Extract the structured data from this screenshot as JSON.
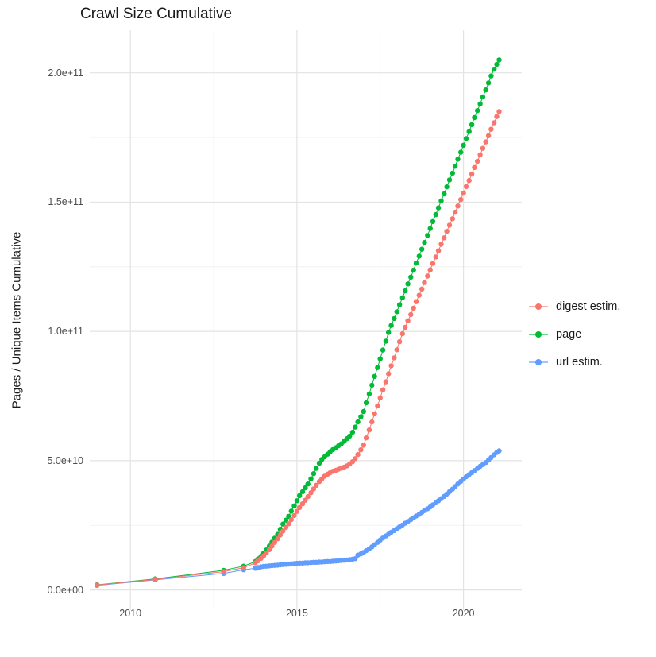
{
  "title": "Crawl Size Cumulative",
  "y_axis": {
    "title": "Pages / Unique Items Cumulative",
    "ticks": [
      {
        "value_e9": 0,
        "label": "0.0e+00"
      },
      {
        "value_e9": 50,
        "label": "5.0e+10"
      },
      {
        "value_e9": 100,
        "label": "1.0e+11"
      },
      {
        "value_e9": 150,
        "label": "1.5e+11"
      },
      {
        "value_e9": 200,
        "label": "2.0e+11"
      }
    ],
    "minor_e9": [
      25,
      75,
      125,
      175
    ]
  },
  "x_axis": {
    "ticks": [
      {
        "value": 2010,
        "label": "2010"
      },
      {
        "value": 2015,
        "label": "2015"
      },
      {
        "value": 2020,
        "label": "2020"
      }
    ],
    "minor": [
      2012.5,
      2017.5
    ]
  },
  "legend": {
    "items": [
      {
        "label": "digest estim.",
        "color": "#F8766D"
      },
      {
        "label": "page",
        "color": "#00BA38"
      },
      {
        "label": "url estim.",
        "color": "#619CFF"
      }
    ]
  },
  "chart_data": {
    "type": "line",
    "markers": true,
    "title": "Crawl Size Cumulative",
    "xlabel": "",
    "ylabel": "Pages / Unique Items Cumulative",
    "value_unit": 1000000000.0,
    "x_domain": [
      2008.78,
      2021.75
    ],
    "y_domain_e9": [
      -7.8,
      216.5
    ],
    "grid": true,
    "legend_position": "right",
    "series": [
      {
        "name": "page",
        "color": "#00BA38",
        "points": [
          [
            2009.0,
            2.0
          ],
          [
            2010.75,
            4.3
          ],
          [
            2012.8,
            7.6
          ],
          [
            2013.4,
            9.2
          ],
          [
            2013.75,
            11.0
          ],
          [
            2013.83,
            12.0
          ],
          [
            2013.92,
            13.0
          ],
          [
            2014.0,
            14.2
          ],
          [
            2014.08,
            15.5
          ],
          [
            2014.17,
            17.0
          ],
          [
            2014.25,
            18.5
          ],
          [
            2014.33,
            20.0
          ],
          [
            2014.42,
            21.5
          ],
          [
            2014.5,
            23.5
          ],
          [
            2014.58,
            25.5
          ],
          [
            2014.67,
            27.0
          ],
          [
            2014.75,
            28.5
          ],
          [
            2014.83,
            30.5
          ],
          [
            2014.92,
            32.5
          ],
          [
            2015.0,
            34.5
          ],
          [
            2015.08,
            36.5
          ],
          [
            2015.17,
            38.0
          ],
          [
            2015.25,
            39.5
          ],
          [
            2015.33,
            41.0
          ],
          [
            2015.42,
            43.0
          ],
          [
            2015.5,
            45.0
          ],
          [
            2015.58,
            47.0
          ],
          [
            2015.67,
            49.0
          ],
          [
            2015.75,
            50.5
          ],
          [
            2015.83,
            51.5
          ],
          [
            2015.92,
            52.5
          ],
          [
            2016.0,
            53.5
          ],
          [
            2016.08,
            54.3
          ],
          [
            2016.17,
            55.0
          ],
          [
            2016.25,
            55.8
          ],
          [
            2016.33,
            56.5
          ],
          [
            2016.42,
            57.5
          ],
          [
            2016.5,
            58.5
          ],
          [
            2016.58,
            59.5
          ],
          [
            2016.67,
            61.0
          ],
          [
            2016.75,
            63.0
          ],
          [
            2016.83,
            65.0
          ],
          [
            2016.92,
            67.0
          ],
          [
            2017.0,
            69.0
          ],
          [
            2017.08,
            72.4
          ],
          [
            2017.17,
            75.8
          ],
          [
            2017.25,
            79.2
          ],
          [
            2017.33,
            82.6
          ],
          [
            2017.42,
            86.0
          ],
          [
            2017.5,
            89.4
          ],
          [
            2017.58,
            92.8
          ],
          [
            2017.67,
            96.2
          ],
          [
            2017.75,
            99.6
          ],
          [
            2017.83,
            102.3
          ],
          [
            2017.92,
            105.0
          ],
          [
            2018.0,
            107.6
          ],
          [
            2018.08,
            110.3
          ],
          [
            2018.17,
            113.0
          ],
          [
            2018.25,
            115.7
          ],
          [
            2018.33,
            118.4
          ],
          [
            2018.42,
            121.0
          ],
          [
            2018.5,
            123.7
          ],
          [
            2018.58,
            126.4
          ],
          [
            2018.67,
            129.1
          ],
          [
            2018.75,
            131.8
          ],
          [
            2018.83,
            134.4
          ],
          [
            2018.92,
            137.1
          ],
          [
            2019.0,
            139.8
          ],
          [
            2019.08,
            142.5
          ],
          [
            2019.17,
            145.2
          ],
          [
            2019.25,
            147.8
          ],
          [
            2019.33,
            150.5
          ],
          [
            2019.42,
            153.2
          ],
          [
            2019.5,
            155.9
          ],
          [
            2019.58,
            158.6
          ],
          [
            2019.67,
            161.2
          ],
          [
            2019.75,
            163.9
          ],
          [
            2019.83,
            166.6
          ],
          [
            2019.92,
            169.3
          ],
          [
            2020.0,
            172.0
          ],
          [
            2020.08,
            174.6
          ],
          [
            2020.17,
            177.3
          ],
          [
            2020.25,
            180.0
          ],
          [
            2020.33,
            182.7
          ],
          [
            2020.42,
            185.4
          ],
          [
            2020.5,
            188.0
          ],
          [
            2020.58,
            190.7
          ],
          [
            2020.67,
            193.4
          ],
          [
            2020.75,
            196.1
          ],
          [
            2020.83,
            198.8
          ],
          [
            2020.92,
            201.4
          ],
          [
            2021.0,
            203.3
          ],
          [
            2021.07,
            205.0
          ]
        ]
      },
      {
        "name": "url estim.",
        "color": "#619CFF",
        "points": [
          [
            2009.0,
            1.8
          ],
          [
            2010.75,
            3.9
          ],
          [
            2012.8,
            6.4
          ],
          [
            2013.4,
            7.8
          ],
          [
            2013.75,
            8.4
          ],
          [
            2013.83,
            8.7
          ],
          [
            2013.92,
            8.9
          ],
          [
            2014.0,
            9.1
          ],
          [
            2014.08,
            9.2
          ],
          [
            2014.17,
            9.3
          ],
          [
            2014.25,
            9.4
          ],
          [
            2014.33,
            9.5
          ],
          [
            2014.42,
            9.6
          ],
          [
            2014.5,
            9.7
          ],
          [
            2014.58,
            9.8
          ],
          [
            2014.67,
            9.9
          ],
          [
            2014.75,
            10.0
          ],
          [
            2014.83,
            10.1
          ],
          [
            2014.92,
            10.2
          ],
          [
            2015.0,
            10.3
          ],
          [
            2015.08,
            10.4
          ],
          [
            2015.17,
            10.4
          ],
          [
            2015.25,
            10.5
          ],
          [
            2015.33,
            10.5
          ],
          [
            2015.42,
            10.6
          ],
          [
            2015.5,
            10.7
          ],
          [
            2015.58,
            10.7
          ],
          [
            2015.67,
            10.8
          ],
          [
            2015.75,
            10.8
          ],
          [
            2015.83,
            10.9
          ],
          [
            2015.92,
            11.0
          ],
          [
            2016.0,
            11.0
          ],
          [
            2016.08,
            11.1
          ],
          [
            2016.17,
            11.2
          ],
          [
            2016.25,
            11.3
          ],
          [
            2016.33,
            11.4
          ],
          [
            2016.42,
            11.5
          ],
          [
            2016.5,
            11.6
          ],
          [
            2016.58,
            11.7
          ],
          [
            2016.67,
            11.9
          ],
          [
            2016.75,
            12.1
          ],
          [
            2016.83,
            13.5
          ],
          [
            2016.92,
            14.0
          ],
          [
            2017.0,
            14.5
          ],
          [
            2017.08,
            15.2
          ],
          [
            2017.17,
            15.9
          ],
          [
            2017.25,
            16.7
          ],
          [
            2017.33,
            17.5
          ],
          [
            2017.42,
            18.4
          ],
          [
            2017.5,
            19.3
          ],
          [
            2017.58,
            20.1
          ],
          [
            2017.67,
            20.9
          ],
          [
            2017.75,
            21.6
          ],
          [
            2017.83,
            22.3
          ],
          [
            2017.92,
            23.0
          ],
          [
            2018.0,
            23.7
          ],
          [
            2018.08,
            24.4
          ],
          [
            2018.17,
            25.1
          ],
          [
            2018.25,
            25.8
          ],
          [
            2018.33,
            26.5
          ],
          [
            2018.42,
            27.2
          ],
          [
            2018.5,
            27.9
          ],
          [
            2018.58,
            28.6
          ],
          [
            2018.67,
            29.3
          ],
          [
            2018.75,
            30.0
          ],
          [
            2018.83,
            30.7
          ],
          [
            2018.92,
            31.4
          ],
          [
            2019.0,
            32.1
          ],
          [
            2019.08,
            32.9
          ],
          [
            2019.17,
            33.7
          ],
          [
            2019.25,
            34.5
          ],
          [
            2019.33,
            35.3
          ],
          [
            2019.42,
            36.2
          ],
          [
            2019.5,
            37.1
          ],
          [
            2019.58,
            38.0
          ],
          [
            2019.67,
            39.0
          ],
          [
            2019.75,
            40.0
          ],
          [
            2019.83,
            41.0
          ],
          [
            2019.92,
            42.0
          ],
          [
            2020.0,
            42.9
          ],
          [
            2020.08,
            43.8
          ],
          [
            2020.17,
            44.6
          ],
          [
            2020.25,
            45.4
          ],
          [
            2020.33,
            46.2
          ],
          [
            2020.42,
            47.0
          ],
          [
            2020.5,
            47.8
          ],
          [
            2020.58,
            48.5
          ],
          [
            2020.67,
            49.3
          ],
          [
            2020.75,
            50.2
          ],
          [
            2020.83,
            51.2
          ],
          [
            2020.92,
            52.3
          ],
          [
            2021.0,
            53.2
          ],
          [
            2021.07,
            53.8
          ]
        ]
      },
      {
        "name": "digest estim.",
        "color": "#F8766D",
        "points": [
          [
            2009.0,
            1.9
          ],
          [
            2010.75,
            4.1
          ],
          [
            2012.8,
            7.1
          ],
          [
            2013.4,
            8.6
          ],
          [
            2013.75,
            10.5
          ],
          [
            2013.83,
            11.3
          ],
          [
            2013.92,
            12.2
          ],
          [
            2014.0,
            13.2
          ],
          [
            2014.08,
            14.3
          ],
          [
            2014.17,
            15.6
          ],
          [
            2014.25,
            17.0
          ],
          [
            2014.33,
            18.4
          ],
          [
            2014.42,
            19.8
          ],
          [
            2014.5,
            21.3
          ],
          [
            2014.58,
            22.8
          ],
          [
            2014.67,
            24.2
          ],
          [
            2014.75,
            25.6
          ],
          [
            2014.83,
            27.2
          ],
          [
            2014.92,
            28.8
          ],
          [
            2015.0,
            30.4
          ],
          [
            2015.08,
            31.9
          ],
          [
            2015.17,
            33.3
          ],
          [
            2015.25,
            34.7
          ],
          [
            2015.33,
            36.1
          ],
          [
            2015.42,
            37.6
          ],
          [
            2015.5,
            39.1
          ],
          [
            2015.58,
            40.5
          ],
          [
            2015.67,
            41.9
          ],
          [
            2015.75,
            43.0
          ],
          [
            2015.83,
            44.0
          ],
          [
            2015.92,
            44.8
          ],
          [
            2016.0,
            45.4
          ],
          [
            2016.08,
            45.9
          ],
          [
            2016.17,
            46.3
          ],
          [
            2016.25,
            46.7
          ],
          [
            2016.33,
            47.1
          ],
          [
            2016.42,
            47.5
          ],
          [
            2016.5,
            48.0
          ],
          [
            2016.58,
            48.7
          ],
          [
            2016.67,
            49.6
          ],
          [
            2016.75,
            50.8
          ],
          [
            2016.83,
            52.4
          ],
          [
            2016.92,
            54.2
          ],
          [
            2017.0,
            56.0
          ],
          [
            2017.08,
            58.8
          ],
          [
            2017.17,
            61.9
          ],
          [
            2017.25,
            65.0
          ],
          [
            2017.33,
            68.1
          ],
          [
            2017.42,
            71.2
          ],
          [
            2017.5,
            74.3
          ],
          [
            2017.58,
            77.4
          ],
          [
            2017.67,
            80.5
          ],
          [
            2017.75,
            83.6
          ],
          [
            2017.83,
            86.7
          ],
          [
            2017.92,
            89.8
          ],
          [
            2018.0,
            92.9
          ],
          [
            2018.08,
            96.0
          ],
          [
            2018.17,
            99.1
          ],
          [
            2018.25,
            101.6
          ],
          [
            2018.33,
            104.1
          ],
          [
            2018.42,
            106.5
          ],
          [
            2018.5,
            109.0
          ],
          [
            2018.58,
            111.5
          ],
          [
            2018.67,
            114.0
          ],
          [
            2018.75,
            116.4
          ],
          [
            2018.83,
            118.9
          ],
          [
            2018.92,
            121.4
          ],
          [
            2019.0,
            123.8
          ],
          [
            2019.08,
            126.3
          ],
          [
            2019.17,
            128.8
          ],
          [
            2019.25,
            131.2
          ],
          [
            2019.33,
            133.7
          ],
          [
            2019.42,
            136.2
          ],
          [
            2019.5,
            138.7
          ],
          [
            2019.58,
            141.1
          ],
          [
            2019.67,
            143.6
          ],
          [
            2019.75,
            146.1
          ],
          [
            2019.83,
            148.5
          ],
          [
            2019.92,
            151.0
          ],
          [
            2020.0,
            153.5
          ],
          [
            2020.08,
            156.0
          ],
          [
            2020.17,
            158.4
          ],
          [
            2020.25,
            160.9
          ],
          [
            2020.33,
            163.4
          ],
          [
            2020.42,
            165.8
          ],
          [
            2020.5,
            168.3
          ],
          [
            2020.58,
            170.8
          ],
          [
            2020.67,
            173.3
          ],
          [
            2020.75,
            175.7
          ],
          [
            2020.83,
            178.2
          ],
          [
            2020.92,
            180.7
          ],
          [
            2021.0,
            183.1
          ],
          [
            2021.07,
            185.0
          ]
        ]
      }
    ]
  }
}
